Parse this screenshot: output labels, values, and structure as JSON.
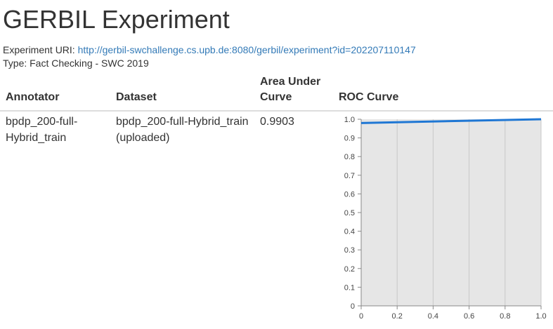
{
  "page": {
    "title": "GERBIL Experiment",
    "uri_label": "Experiment URI:",
    "uri": "http://gerbil-swchallenge.cs.upb.de:8080/gerbil/experiment?id=202207110147",
    "type_line": "Type: Fact Checking - SWC 2019"
  },
  "table": {
    "headers": {
      "annotator": "Annotator",
      "dataset": "Dataset",
      "auc_line1": "Area Under",
      "auc_line2": "Curve",
      "roc": "ROC Curve"
    },
    "row": {
      "annotator_line1": "bpdp_200-full-",
      "annotator_line2": "Hybrid_train",
      "dataset_line1": "bpdp_200-full-Hybrid_train",
      "dataset_line2": "(uploaded)",
      "auc": "0.9903"
    }
  },
  "chart_data": {
    "type": "line",
    "title": "",
    "xlabel": "",
    "ylabel": "",
    "xlim": [
      0,
      1
    ],
    "ylim": [
      0,
      1
    ],
    "grid": true,
    "x_ticks": [
      "0",
      "0.2",
      "0.4",
      "0.6",
      "0.8",
      "1.0"
    ],
    "y_ticks": [
      "0",
      "0.1",
      "0.2",
      "0.3",
      "0.4",
      "0.5",
      "0.6",
      "0.7",
      "0.8",
      "0.9",
      "1.0"
    ],
    "series": [
      {
        "color": "#1f77d4",
        "x": [
          0,
          1
        ],
        "y": [
          0.98,
          1.0
        ]
      }
    ]
  }
}
